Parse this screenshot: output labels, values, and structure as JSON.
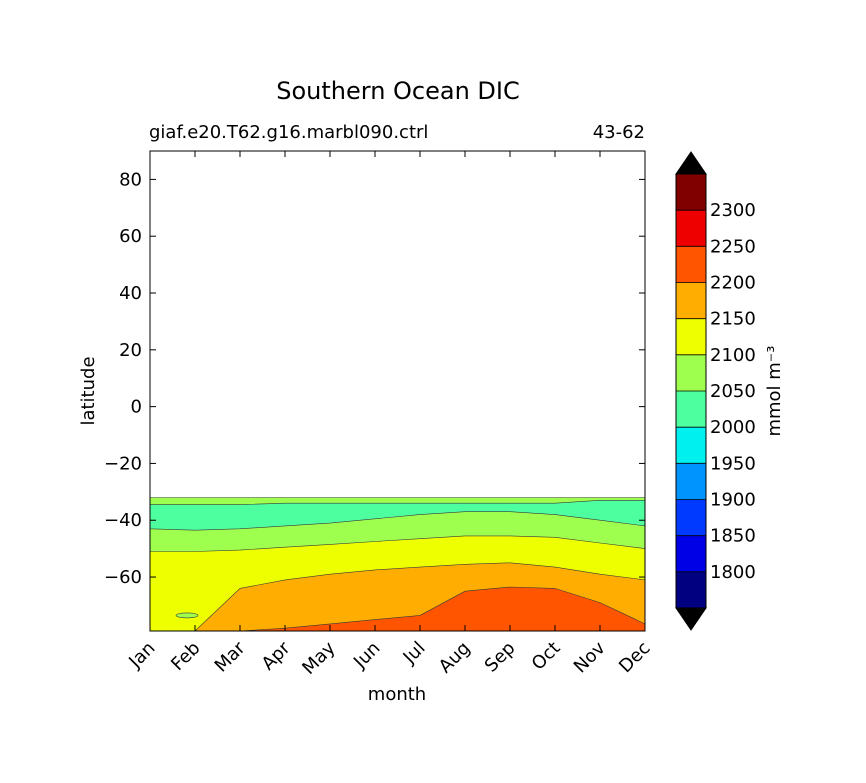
{
  "chart_data": {
    "type": "contour",
    "title": "Southern Ocean DIC",
    "subtitle_left": "giaf.e20.T62.g16.marbl090.ctrl",
    "subtitle_right": "43-62",
    "xlabel": "month",
    "ylabel": "latitude",
    "x_ticks": [
      "Jan",
      "Feb",
      "Mar",
      "Apr",
      "May",
      "Jun",
      "Jul",
      "Aug",
      "Sep",
      "Oct",
      "Nov",
      "Dec"
    ],
    "xlim": [
      0,
      11
    ],
    "ylim": [
      -79,
      90
    ],
    "y_ticks": [
      {
        "value": 80,
        "label": "80"
      },
      {
        "value": 60,
        "label": "60"
      },
      {
        "value": 40,
        "label": "40"
      },
      {
        "value": 20,
        "label": "20"
      },
      {
        "value": 0,
        "label": "0"
      },
      {
        "value": -20,
        "label": "−20"
      },
      {
        "value": -40,
        "label": "−40"
      },
      {
        "value": -60,
        "label": "−60"
      }
    ],
    "colorbar": {
      "label": "mmol m⁻³",
      "levels": [
        1750,
        1800,
        1850,
        1900,
        1950,
        2000,
        2050,
        2100,
        2150,
        2200,
        2250,
        2300,
        2350
      ],
      "colors": [
        "#000080",
        "#0000e6",
        "#0039ff",
        "#0094ff",
        "#00f0f0",
        "#4dff9f",
        "#9eff4f",
        "#eeff00",
        "#ffad00",
        "#ff5500",
        "#ee0000",
        "#800000"
      ],
      "extend_colors": {
        "under": "#000000",
        "over": "#000000"
      },
      "tick_labels": [
        "1800",
        "1850",
        "1900",
        "1950",
        "2000",
        "2050",
        "2100",
        "2150",
        "2200",
        "2250",
        "2300"
      ]
    },
    "domain_north_edge_lat": -32,
    "bands": [
      {
        "level": "2050-2100",
        "color": "#9eff4f",
        "upper_boundary_lat": [
          -32,
          -32,
          -32,
          -32,
          -32,
          -32,
          -32,
          -32,
          -32,
          -32,
          -32,
          -32
        ]
      },
      {
        "level": "2000-2050",
        "color": "#4dff9f",
        "upper_boundary_lat": [
          -34.5,
          -34.5,
          -34.5,
          -34,
          -34,
          -34,
          -34,
          -34,
          -34,
          -34,
          -33,
          -33
        ],
        "lower_boundary_lat": [
          -43,
          -43.5,
          -43,
          -42,
          -41,
          -39.5,
          -38,
          -37,
          -37,
          -38,
          -40,
          -42
        ]
      },
      {
        "level": "2100-2150",
        "color": "#eeff00",
        "upper_boundary_lat": [
          -51,
          -51,
          -50.5,
          -49.5,
          -48.5,
          -47.5,
          -46.5,
          -45.5,
          -45.5,
          -46,
          -48,
          -50
        ]
      },
      {
        "level": "2150-2200",
        "color": "#ffad00",
        "upper_boundary_lat": [
          -79,
          -79,
          -64,
          -61,
          -59,
          -57.5,
          -56.5,
          -55.5,
          -55,
          -56.5,
          -59,
          -61
        ]
      },
      {
        "level": "2200-2250",
        "color": "#ff5500",
        "upper_boundary_lat": [
          -79,
          -79,
          -79,
          -78,
          -76.5,
          -75,
          -73.5,
          -65,
          -63.5,
          -64,
          -69,
          -76.5
        ]
      }
    ],
    "annotations": [
      {
        "type": "small-patch",
        "month": "Feb",
        "lat": -73.5,
        "color": "#9eff4f"
      }
    ]
  }
}
